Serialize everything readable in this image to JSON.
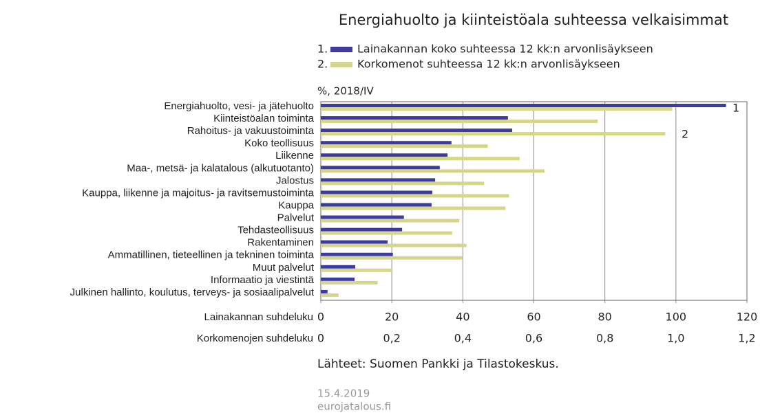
{
  "chart_data": {
    "type": "hbar",
    "title": "Energiahuolto ja kiinteistöala suhteessa velkaisimmat",
    "unit_label": "%, 2018/IV",
    "categories": [
      "Energiahuolto, vesi- ja jätehuolto",
      "Kiinteistöalan toiminta",
      "Rahoitus- ja vakuustoiminta",
      "Koko teollisuus",
      "Liikenne",
      "Maa-, metsä- ja kalatalous (alkutuotanto)",
      "Jalostus",
      "Kauppa, liikenne ja majoitus- ja ravitsemustoiminta",
      "Kauppa",
      "Palvelut",
      "Tehdasteollisuus",
      "Rakentaminen",
      "Ammatillinen, tieteellinen ja tekninen toiminta",
      "Muut palvelut",
      "Informaatio ja viestintä",
      "Julkinen hallinto, koulutus, terveys- ja sosiaalipalvelut"
    ],
    "series": [
      {
        "name": "Lainakannan koko suhteessa 12 kk:n arvonlisäykseen",
        "legend_number": "1.",
        "end_label": "1",
        "color": "#3c3ca0",
        "axis": "x",
        "values": [
          114.1,
          52.7,
          53.9,
          36.8,
          35.7,
          33.5,
          32.2,
          31.4,
          31.2,
          23.4,
          22.9,
          18.8,
          20.3,
          9.7,
          9.5,
          1.9
        ]
      },
      {
        "name": "Korkomenot suhteessa 12 kk:n arvonlisäykseen",
        "legend_number": "2.",
        "end_label": "2",
        "color": "#d6d68a",
        "axis": "x2",
        "values": [
          0.99,
          0.78,
          0.97,
          0.47,
          0.56,
          0.63,
          0.46,
          0.53,
          0.52,
          0.39,
          0.37,
          0.41,
          0.4,
          0.2,
          0.16,
          0.05
        ]
      }
    ],
    "xlabel": "Lainakannan suhdeluku",
    "xlim": [
      0,
      120
    ],
    "xticks": [
      0,
      20,
      40,
      60,
      80,
      100,
      120
    ],
    "x2label": "Korkomenojen suhdeluku",
    "x2lim": [
      0,
      1.2
    ],
    "x2ticks": [
      0,
      {
        "value": 0.2,
        "label": "0,2"
      },
      {
        "value": 0.4,
        "label": "0,4"
      },
      {
        "value": 0.6,
        "label": "0,6"
      },
      {
        "value": 0.8,
        "label": "0,8"
      },
      {
        "value": 1.0,
        "label": "1,0"
      },
      {
        "value": 1.2,
        "label": "1,2"
      }
    ],
    "grid": true,
    "source": "Lähteet: Suomen Pankki ja Tilastokeskus.",
    "date": "15.4.2019",
    "site": "eurojatalous.fi"
  }
}
